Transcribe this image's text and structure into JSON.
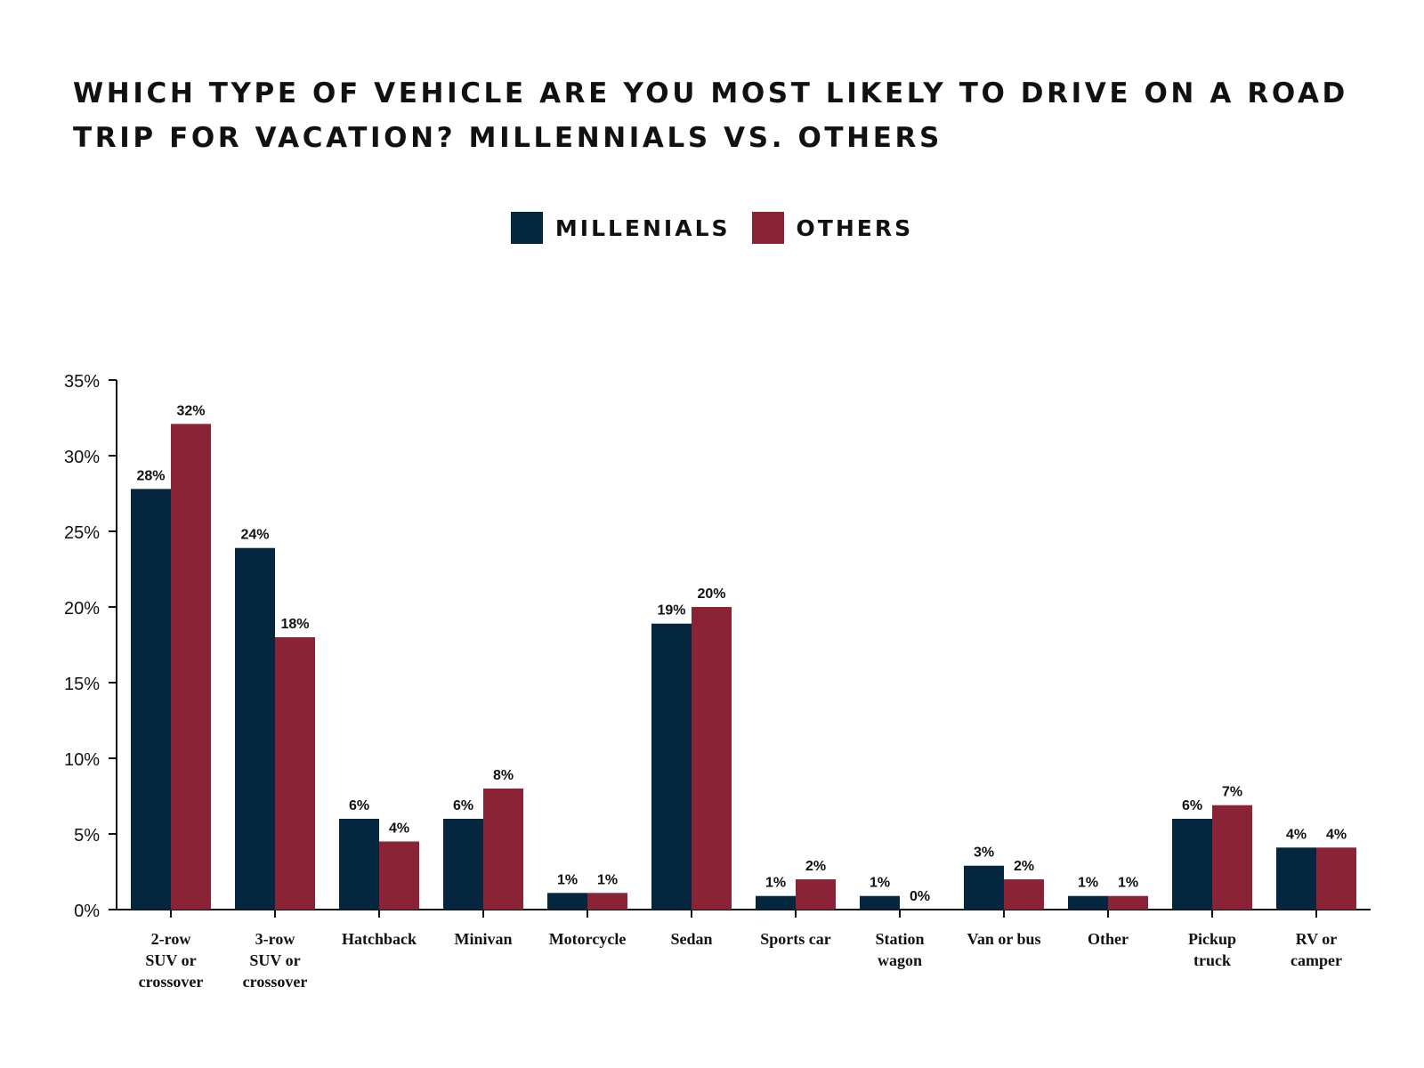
{
  "chart_data": {
    "type": "bar",
    "title": "WHICH TYPE OF VEHICLE ARE YOU MOST LIKELY TO DRIVE ON A ROAD TRIP FOR VACATION? MILLENNIALS VS. OTHERS",
    "categories": [
      [
        "2-row",
        "SUV or",
        "crossover"
      ],
      [
        "3-row",
        "SUV or",
        "crossover"
      ],
      [
        "Hatchback"
      ],
      [
        "Minivan"
      ],
      [
        "Motorcycle"
      ],
      [
        "Sedan"
      ],
      [
        "Sports car"
      ],
      [
        "Station",
        "wagon"
      ],
      [
        "Van or bus"
      ],
      [
        "Other"
      ],
      [
        "Pickup",
        "truck"
      ],
      [
        "RV or",
        "camper"
      ]
    ],
    "series": [
      {
        "name": "MILLENIALS",
        "color": "#04263F",
        "values": [
          27.8,
          23.9,
          6,
          6,
          1.1,
          18.9,
          0.9,
          0.9,
          2.9,
          0.9,
          6,
          4.1
        ],
        "labels": [
          "28%",
          "24%",
          "6%",
          "6%",
          "1%",
          "19%",
          "1%",
          "1%",
          "3%",
          "1%",
          "6%",
          "4%"
        ]
      },
      {
        "name": "OTHERS",
        "color": "#8A2335",
        "values": [
          32.1,
          18,
          4.5,
          8,
          1.1,
          20,
          2,
          0,
          2,
          0.9,
          6.9,
          4.1
        ],
        "labels": [
          "32%",
          "18%",
          "4%",
          "8%",
          "1%",
          "20%",
          "2%",
          "0%",
          "2%",
          "1%",
          "7%",
          "4%"
        ]
      }
    ],
    "y_ticks": [
      "0%",
      "5%",
      "10%",
      "15%",
      "20%",
      "25%",
      "30%",
      "35%"
    ],
    "ylim": [
      0,
      35
    ],
    "xlabel": "",
    "ylabel": "",
    "legend_position": "top-center",
    "grid": false
  }
}
